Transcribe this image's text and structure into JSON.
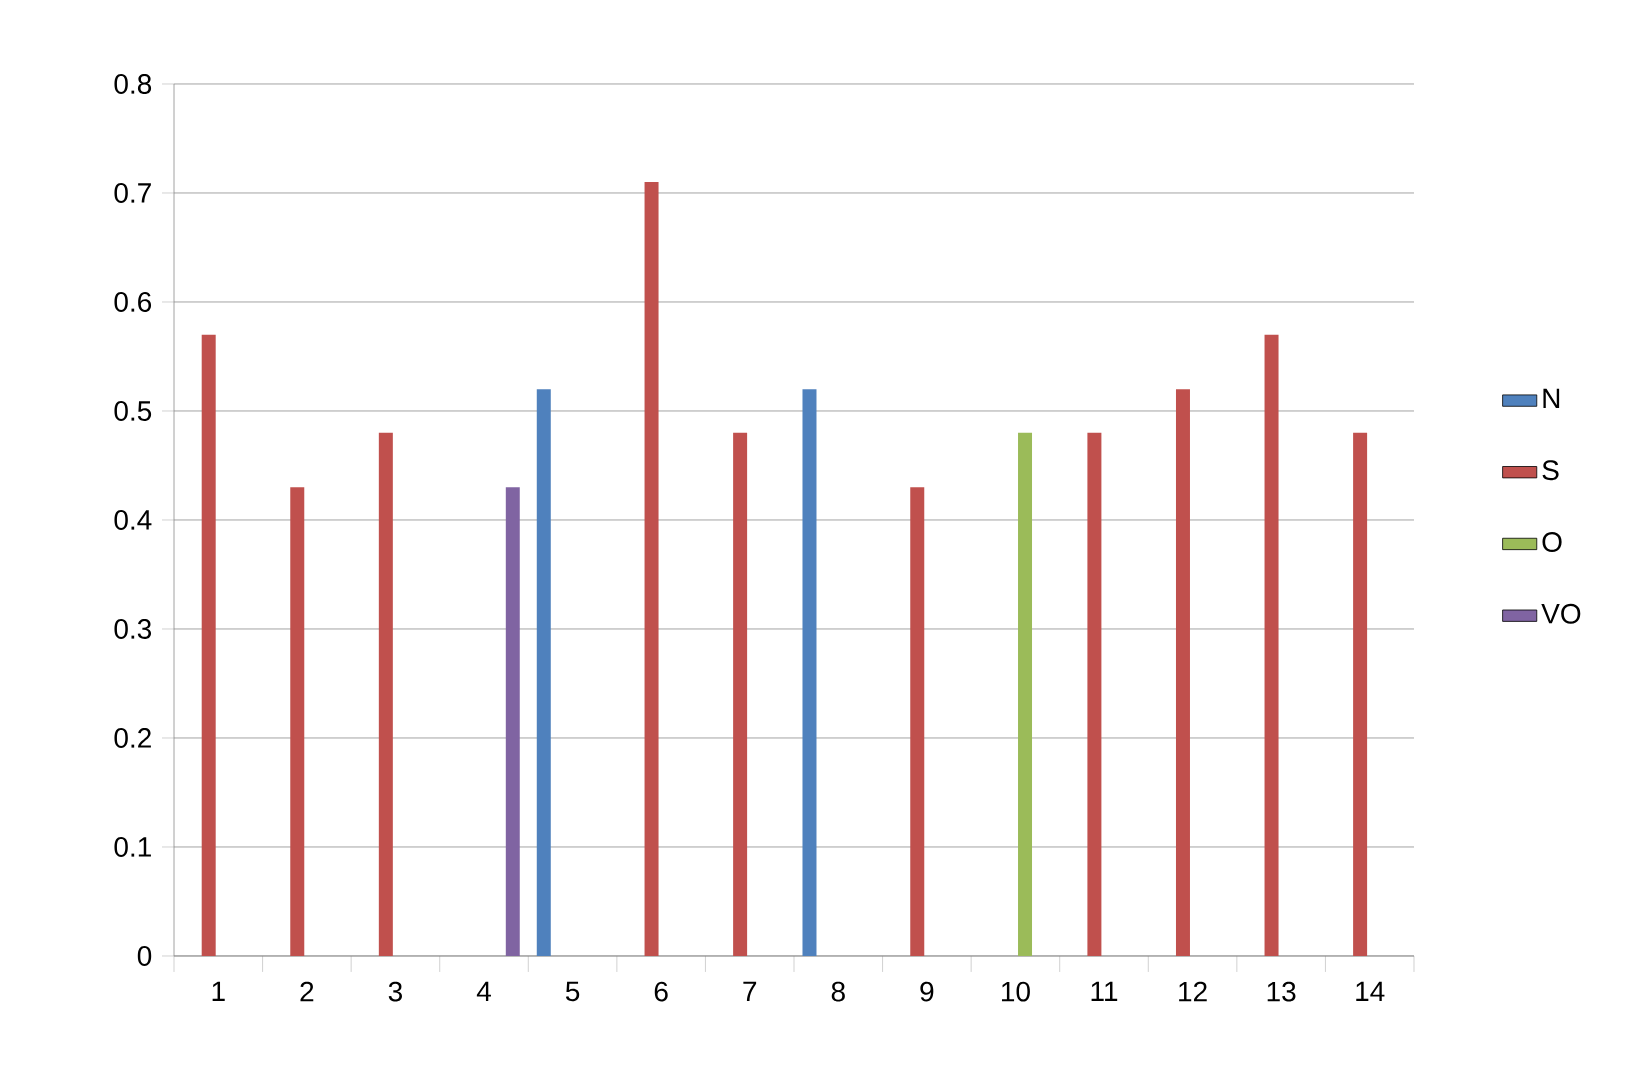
{
  "chart_data": {
    "type": "bar",
    "categories": [
      "1",
      "2",
      "3",
      "4",
      "5",
      "6",
      "7",
      "8",
      "9",
      "10",
      "11",
      "12",
      "13",
      "14"
    ],
    "series": [
      {
        "name": "N",
        "color": "#4f81bd",
        "values": [
          null,
          null,
          null,
          null,
          0.52,
          null,
          null,
          0.52,
          null,
          null,
          null,
          null,
          null,
          null
        ]
      },
      {
        "name": "S",
        "color": "#c0504d",
        "values": [
          0.57,
          0.43,
          0.48,
          null,
          null,
          0.71,
          0.48,
          null,
          0.43,
          null,
          0.48,
          0.52,
          0.57,
          0.48
        ]
      },
      {
        "name": "O",
        "color": "#9bbb59",
        "values": [
          null,
          null,
          null,
          null,
          null,
          null,
          null,
          null,
          null,
          0.48,
          null,
          null,
          null,
          null
        ]
      },
      {
        "name": "VO",
        "color": "#8064a2",
        "values": [
          null,
          null,
          null,
          0.43,
          null,
          null,
          null,
          null,
          null,
          null,
          null,
          null,
          null,
          null
        ]
      }
    ],
    "ylim": [
      0,
      0.8
    ],
    "yticks": [
      0,
      0.1,
      0.2,
      0.3,
      0.4,
      0.5,
      0.6,
      0.7,
      0.8
    ],
    "grid": "y",
    "legend": "right"
  }
}
